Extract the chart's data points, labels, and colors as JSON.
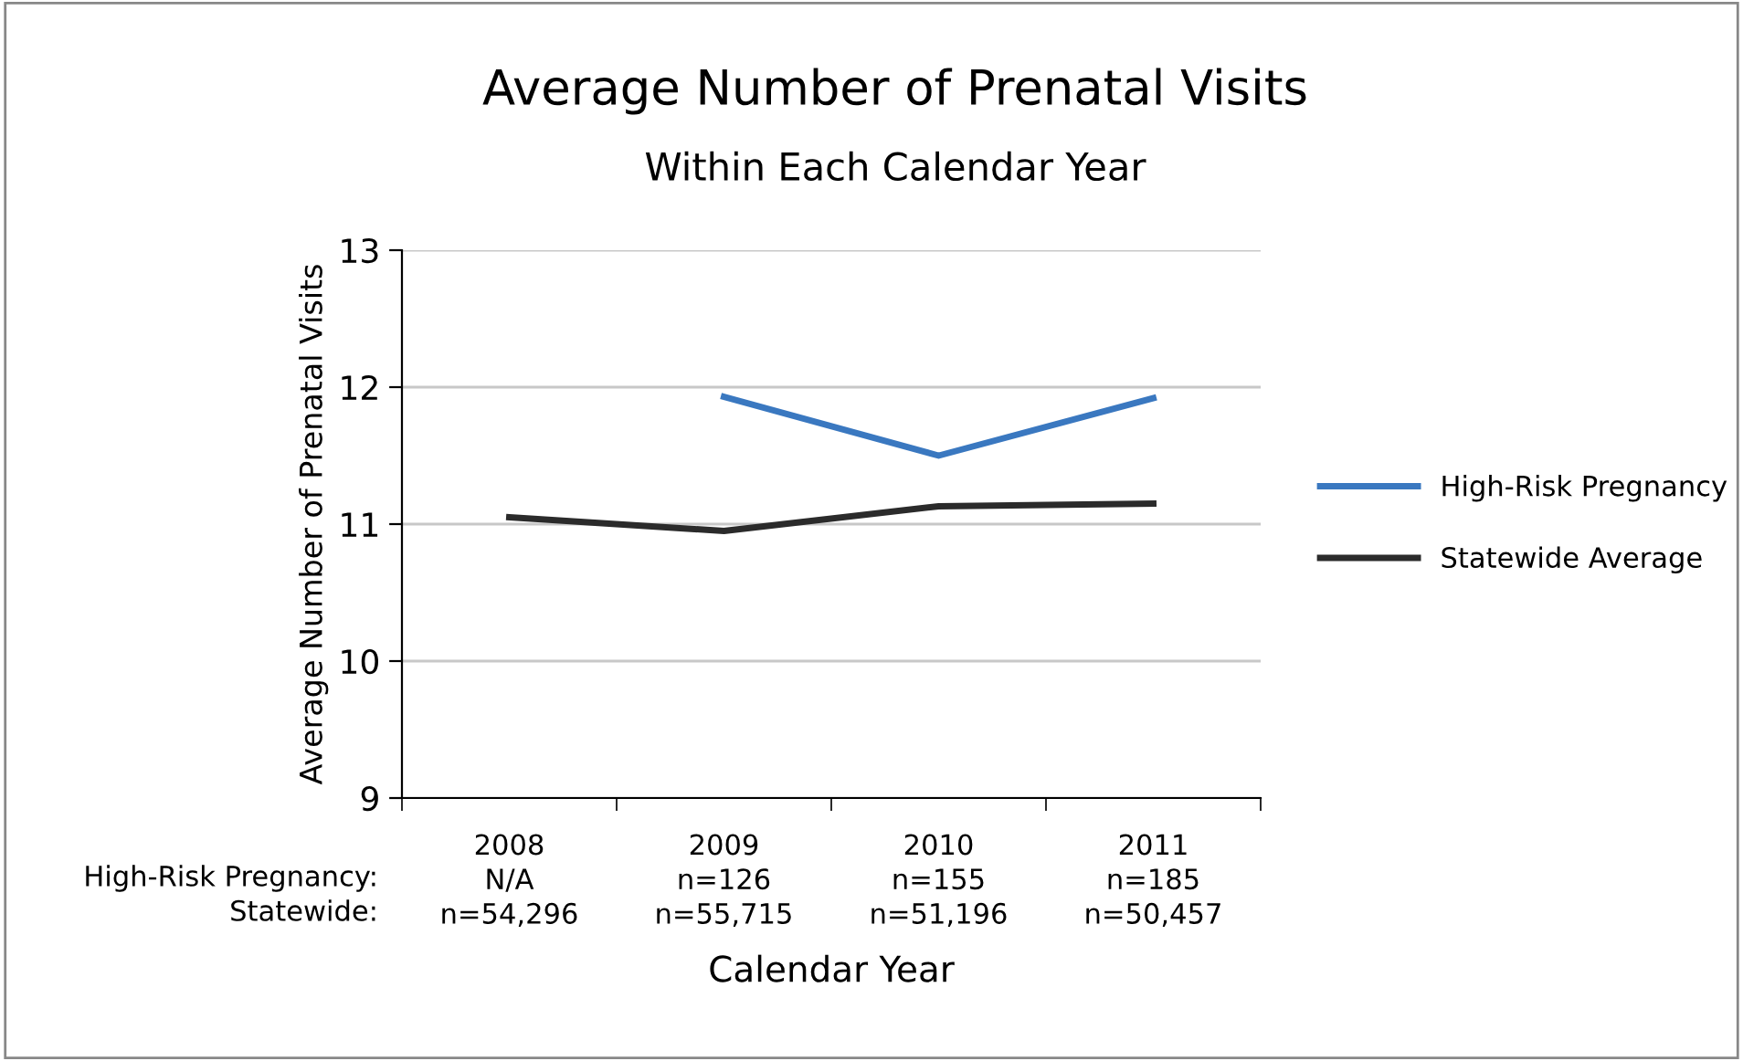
{
  "chart_data": {
    "type": "line",
    "title": "Average Number of Prenatal Visits",
    "subtitle": "Within Each Calendar Year",
    "xlabel": "Calendar Year",
    "ylabel": "Average Number of Prenatal Visits",
    "categories": [
      "2008\nN/A\nn=54,296",
      "2009\nn=126\nn=55,715",
      "2010\nn=155\nn=51,196",
      "2011\nn=185\nn=50,457"
    ],
    "series": [
      {
        "name": "High-Risk Pregnancy",
        "color": "#3a78c0",
        "values": [
          null,
          11.93,
          11.5,
          11.92
        ]
      },
      {
        "name": "Statewide Average",
        "color": "#2b2b2b",
        "values": [
          11.05,
          10.95,
          11.13,
          11.15
        ]
      }
    ],
    "annotations": [
      "High-Risk Pregnancy:",
      "Statewide:"
    ],
    "ylim": [
      9,
      13
    ],
    "yticks": [
      9,
      10,
      11,
      12,
      13
    ],
    "grid": "y",
    "legend": "right",
    "marker": "none",
    "line_style": "solid"
  }
}
